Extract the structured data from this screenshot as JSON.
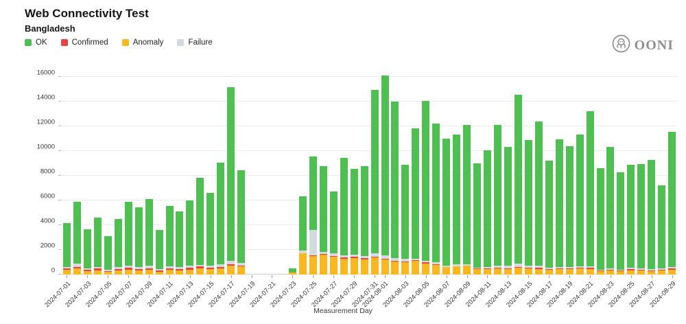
{
  "header": {
    "title": "Web Connectivity Test",
    "subtitle": "Bangladesh"
  },
  "logo": {
    "word": "OONI"
  },
  "legend": [
    {
      "key": "ok",
      "label": "OK",
      "color": "#4EC052"
    },
    {
      "key": "confirmed",
      "label": "Confirmed",
      "color": "#EC4141"
    },
    {
      "key": "anomaly",
      "label": "Anomaly",
      "color": "#FBB71F"
    },
    {
      "key": "failure",
      "label": "Failure",
      "color": "#D4DAE0"
    }
  ],
  "chart_data": {
    "type": "bar",
    "stacked": true,
    "title": "Web Connectivity Test",
    "subtitle": "Bangladesh",
    "xlabel": "Measurement Day",
    "ylim": [
      0,
      16000
    ],
    "yticks": [
      0,
      2000,
      4000,
      6000,
      8000,
      10000,
      12000,
      14000,
      16000
    ],
    "grid": true,
    "legend_position": "top-left",
    "stack_order_bottom_to_top": [
      "anomaly",
      "confirmed",
      "failure",
      "ok"
    ],
    "colors": {
      "ok": "#4EC052",
      "confirmed": "#EC4141",
      "anomaly": "#FBB71F",
      "failure": "#D4DAE0"
    },
    "x_tick_rule": "odd days of month labeled",
    "bars": [
      {
        "date": "2024-07-01",
        "ok": 3565,
        "confirmed": 145,
        "anomaly": 370,
        "failure": 90
      },
      {
        "date": "2024-07-02",
        "ok": 5000,
        "confirmed": 110,
        "anomaly": 520,
        "failure": 260
      },
      {
        "date": "2024-07-03",
        "ok": 3170,
        "confirmed": 100,
        "anomaly": 280,
        "failure": 120
      },
      {
        "date": "2024-07-04",
        "ok": 3970,
        "confirmed": 130,
        "anomaly": 350,
        "failure": 150
      },
      {
        "date": "2024-07-05",
        "ok": 2740,
        "confirmed": 90,
        "anomaly": 200,
        "failure": 90
      },
      {
        "date": "2024-07-06",
        "ok": 3910,
        "confirmed": 120,
        "anomaly": 320,
        "failure": 150
      },
      {
        "date": "2024-07-07",
        "ok": 5130,
        "confirmed": 150,
        "anomaly": 400,
        "failure": 200
      },
      {
        "date": "2024-07-08",
        "ok": 4820,
        "confirmed": 100,
        "anomaly": 350,
        "failure": 150
      },
      {
        "date": "2024-07-09",
        "ok": 5420,
        "confirmed": 120,
        "anomaly": 400,
        "failure": 180
      },
      {
        "date": "2024-07-10",
        "ok": 3210,
        "confirmed": 80,
        "anomaly": 250,
        "failure": 100
      },
      {
        "date": "2024-07-11",
        "ok": 4900,
        "confirmed": 100,
        "anomaly": 380,
        "failure": 200
      },
      {
        "date": "2024-07-12",
        "ok": 4520,
        "confirmed": 90,
        "anomaly": 350,
        "failure": 150
      },
      {
        "date": "2024-07-13",
        "ok": 5280,
        "confirmed": 150,
        "anomaly": 400,
        "failure": 180
      },
      {
        "date": "2024-07-14",
        "ok": 7030,
        "confirmed": 150,
        "anomaly": 500,
        "failure": 150
      },
      {
        "date": "2024-07-15",
        "ok": 5880,
        "confirmed": 100,
        "anomaly": 450,
        "failure": 200
      },
      {
        "date": "2024-07-16",
        "ok": 8210,
        "confirmed": 100,
        "anomaly": 500,
        "failure": 250
      },
      {
        "date": "2024-07-17",
        "ok": 14050,
        "confirmed": 150,
        "anomaly": 700,
        "failure": 250
      },
      {
        "date": "2024-07-18",
        "ok": 7520,
        "confirmed": 80,
        "anomaly": 650,
        "failure": 200
      },
      {
        "date": "2024-07-19",
        "ok": 0,
        "confirmed": 0,
        "anomaly": 0,
        "failure": 0
      },
      {
        "date": "2024-07-20",
        "ok": 0,
        "confirmed": 0,
        "anomaly": 0,
        "failure": 0
      },
      {
        "date": "2024-07-21",
        "ok": 0,
        "confirmed": 0,
        "anomaly": 0,
        "failure": 0
      },
      {
        "date": "2024-07-22",
        "ok": 0,
        "confirmed": 0,
        "anomaly": 0,
        "failure": 0
      },
      {
        "date": "2024-07-23",
        "ok": 330,
        "confirmed": 0,
        "anomaly": 150,
        "failure": 0
      },
      {
        "date": "2024-07-24",
        "ok": 4400,
        "confirmed": 30,
        "anomaly": 1700,
        "failure": 220
      },
      {
        "date": "2024-07-25",
        "ok": 5940,
        "confirmed": 30,
        "anomaly": 1500,
        "failure": 2100
      },
      {
        "date": "2024-07-26",
        "ok": 6960,
        "confirmed": 60,
        "anomaly": 1600,
        "failure": 180
      },
      {
        "date": "2024-07-27",
        "ok": 4970,
        "confirmed": 50,
        "anomaly": 1450,
        "failure": 250
      },
      {
        "date": "2024-07-28",
        "ok": 7880,
        "confirmed": 80,
        "anomaly": 1300,
        "failure": 200
      },
      {
        "date": "2024-07-29",
        "ok": 6960,
        "confirmed": 100,
        "anomaly": 1350,
        "failure": 150
      },
      {
        "date": "2024-07-30",
        "ok": 7270,
        "confirmed": 60,
        "anomaly": 1250,
        "failure": 200
      },
      {
        "date": "2024-07-31",
        "ok": 13220,
        "confirmed": 50,
        "anomaly": 1400,
        "failure": 300
      },
      {
        "date": "2024-08-01",
        "ok": 14590,
        "confirmed": 40,
        "anomaly": 1250,
        "failure": 250
      },
      {
        "date": "2024-08-02",
        "ok": 12680,
        "confirmed": 40,
        "anomaly": 1050,
        "failure": 240
      },
      {
        "date": "2024-08-03",
        "ok": 7610,
        "confirmed": 60,
        "anomaly": 1000,
        "failure": 200
      },
      {
        "date": "2024-08-04",
        "ok": 10550,
        "confirmed": 40,
        "anomaly": 1100,
        "failure": 160
      },
      {
        "date": "2024-08-05",
        "ok": 12930,
        "confirmed": 80,
        "anomaly": 900,
        "failure": 150
      },
      {
        "date": "2024-08-06",
        "ok": 11240,
        "confirmed": 40,
        "anomaly": 800,
        "failure": 150
      },
      {
        "date": "2024-08-07",
        "ok": 10240,
        "confirmed": 30,
        "anomaly": 600,
        "failure": 120
      },
      {
        "date": "2024-08-08",
        "ok": 10480,
        "confirmed": 40,
        "anomaly": 650,
        "failure": 150
      },
      {
        "date": "2024-08-09",
        "ok": 11260,
        "confirmed": 30,
        "anomaly": 700,
        "failure": 130
      },
      {
        "date": "2024-08-10",
        "ok": 8440,
        "confirmed": 30,
        "anomaly": 450,
        "failure": 100
      },
      {
        "date": "2024-08-11",
        "ok": 9420,
        "confirmed": 40,
        "anomaly": 450,
        "failure": 120
      },
      {
        "date": "2024-08-12",
        "ok": 11440,
        "confirmed": 50,
        "anomaly": 500,
        "failure": 150
      },
      {
        "date": "2024-08-13",
        "ok": 9650,
        "confirmed": 60,
        "anomaly": 450,
        "failure": 200
      },
      {
        "date": "2024-08-14",
        "ok": 13680,
        "confirmed": 80,
        "anomaly": 550,
        "failure": 250
      },
      {
        "date": "2024-08-15",
        "ok": 10190,
        "confirmed": 50,
        "anomaly": 500,
        "failure": 150
      },
      {
        "date": "2024-08-16",
        "ok": 11650,
        "confirmed": 100,
        "anomaly": 450,
        "failure": 200
      },
      {
        "date": "2024-08-17",
        "ok": 8670,
        "confirmed": 30,
        "anomaly": 400,
        "failure": 100
      },
      {
        "date": "2024-08-18",
        "ok": 10340,
        "confirmed": 40,
        "anomaly": 450,
        "failure": 120
      },
      {
        "date": "2024-08-19",
        "ok": 9790,
        "confirmed": 40,
        "anomaly": 450,
        "failure": 120
      },
      {
        "date": "2024-08-20",
        "ok": 10670,
        "confirmed": 50,
        "anomaly": 500,
        "failure": 100
      },
      {
        "date": "2024-08-21",
        "ok": 12550,
        "confirmed": 80,
        "anomaly": 450,
        "failure": 150
      },
      {
        "date": "2024-08-22",
        "ok": 8190,
        "confirmed": 30,
        "anomaly": 300,
        "failure": 80
      },
      {
        "date": "2024-08-23",
        "ok": 9860,
        "confirmed": 30,
        "anomaly": 350,
        "failure": 100
      },
      {
        "date": "2024-08-24",
        "ok": 7870,
        "confirmed": 30,
        "anomaly": 300,
        "failure": 80
      },
      {
        "date": "2024-08-25",
        "ok": 8340,
        "confirmed": 80,
        "anomaly": 350,
        "failure": 100
      },
      {
        "date": "2024-08-26",
        "ok": 8420,
        "confirmed": 40,
        "anomaly": 350,
        "failure": 120
      },
      {
        "date": "2024-08-27",
        "ok": 8870,
        "confirmed": 30,
        "anomaly": 300,
        "failure": 100
      },
      {
        "date": "2024-08-28",
        "ok": 6710,
        "confirmed": 40,
        "anomaly": 350,
        "failure": 100
      },
      {
        "date": "2024-08-29",
        "ok": 10920,
        "confirmed": 100,
        "anomaly": 400,
        "failure": 120
      }
    ]
  }
}
